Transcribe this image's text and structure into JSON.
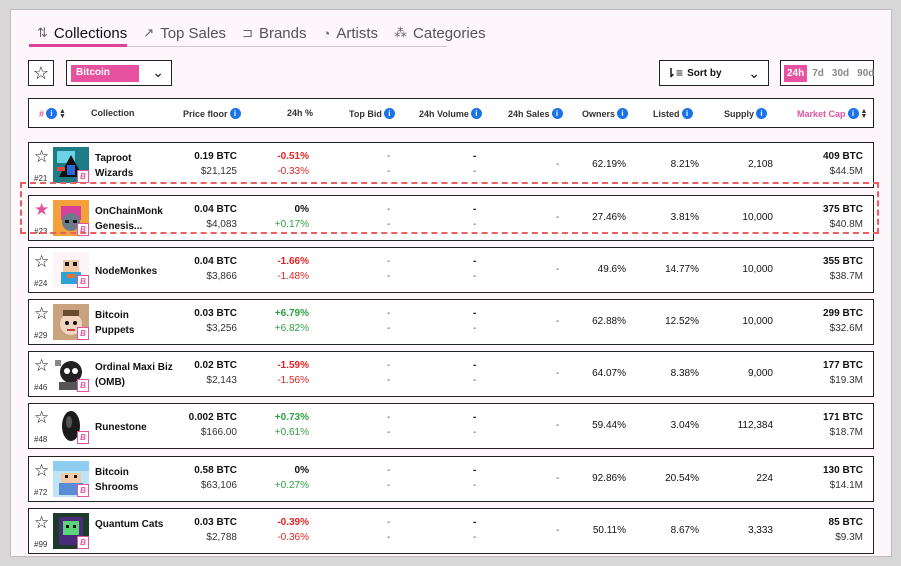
{
  "tabs": [
    {
      "label": "Collections",
      "icon": "sort-arrows-icon"
    },
    {
      "label": "Top Sales",
      "icon": "trend-up-icon"
    },
    {
      "label": "Brands",
      "icon": "tag-icon"
    },
    {
      "label": "Artists",
      "icon": "palette-icon"
    },
    {
      "label": "Categories",
      "icon": "shapes-icon"
    }
  ],
  "filters": {
    "chain_selected": "Bitcoin",
    "sort_label": "Sort by",
    "time_options": [
      "24h",
      "7d",
      "30d",
      "90d"
    ],
    "time_selected": "24h"
  },
  "columns": {
    "rank": "#",
    "collection": "Collection",
    "price_floor": "Price floor",
    "change": "24h %",
    "top_bid": "Top Bid",
    "volume": "24h Volume",
    "sales": "24h Sales",
    "owners": "Owners",
    "listed": "Listed",
    "supply": "Supply",
    "market_cap": "Market Cap"
  },
  "rows": [
    {
      "rank": "#21",
      "name": "Taproot Wizards",
      "floor_btc": "0.19  BTC",
      "floor_usd": "$21,125",
      "chg1": "-0.51%",
      "chg2": "-0.33%",
      "dir": "neg",
      "owners": "62.19%",
      "listed": "8.21%",
      "supply": "2,108",
      "mc_btc": "409  BTC",
      "mc_usd": "$44.5M",
      "fav": false
    },
    {
      "rank": "#23",
      "name": "OnChainMonk Genesis...",
      "floor_btc": "0.04  BTC",
      "floor_usd": "$4,083",
      "chg1": "0%",
      "chg2": "+0.17%",
      "dir": "pos",
      "owners": "27.46%",
      "listed": "3.81%",
      "supply": "10,000",
      "mc_btc": "375  BTC",
      "mc_usd": "$40.8M",
      "fav": true
    },
    {
      "rank": "#24",
      "name": "NodeMonkes",
      "floor_btc": "0.04  BTC",
      "floor_usd": "$3,866",
      "chg1": "-1.66%",
      "chg2": "-1.48%",
      "dir": "neg",
      "owners": "49.6%",
      "listed": "14.77%",
      "supply": "10,000",
      "mc_btc": "355  BTC",
      "mc_usd": "$38.7M",
      "fav": false
    },
    {
      "rank": "#29",
      "name": "Bitcoin Puppets",
      "floor_btc": "0.03  BTC",
      "floor_usd": "$3,256",
      "chg1": "+6.79%",
      "chg2": "+6.82%",
      "dir": "pos",
      "owners": "62.88%",
      "listed": "12.52%",
      "supply": "10,000",
      "mc_btc": "299  BTC",
      "mc_usd": "$32.6M",
      "fav": false
    },
    {
      "rank": "#46",
      "name": "Ordinal Maxi Biz (OMB)",
      "floor_btc": "0.02  BTC",
      "floor_usd": "$2,143",
      "chg1": "-1.59%",
      "chg2": "-1.56%",
      "dir": "neg",
      "owners": "64.07%",
      "listed": "8.38%",
      "supply": "9,000",
      "mc_btc": "177  BTC",
      "mc_usd": "$19.3M",
      "fav": false
    },
    {
      "rank": "#48",
      "name": "Runestone",
      "floor_btc": "0.002  BTC",
      "floor_usd": "$166.00",
      "chg1": "+0.73%",
      "chg2": "+0.61%",
      "dir": "pos",
      "owners": "59.44%",
      "listed": "3.04%",
      "supply": "112,384",
      "mc_btc": "171  BTC",
      "mc_usd": "$18.7M",
      "fav": false
    },
    {
      "rank": "#72",
      "name": "Bitcoin Shrooms",
      "floor_btc": "0.58  BTC",
      "floor_usd": "$63,106",
      "chg1": "0%",
      "chg2": "+0.27%",
      "dir": "pos",
      "owners": "92.86%",
      "listed": "20.54%",
      "supply": "224",
      "mc_btc": "130  BTC",
      "mc_usd": "$14.1M",
      "fav": false
    },
    {
      "rank": "#99",
      "name": "Quantum Cats",
      "floor_btc": "0.03  BTC",
      "floor_usd": "$2,788",
      "chg1": "-0.39%",
      "chg2": "-0.36%",
      "dir": "neg",
      "owners": "50.11%",
      "listed": "8.67%",
      "supply": "3,333",
      "mc_btc": "85  BTC",
      "mc_usd": "$9.3M",
      "fav": false
    }
  ],
  "empty_value": "-",
  "colors": {
    "accent": "#e6529f",
    "negative": "#e02424",
    "positive": "#2ea043",
    "info": "#1a73e8"
  }
}
